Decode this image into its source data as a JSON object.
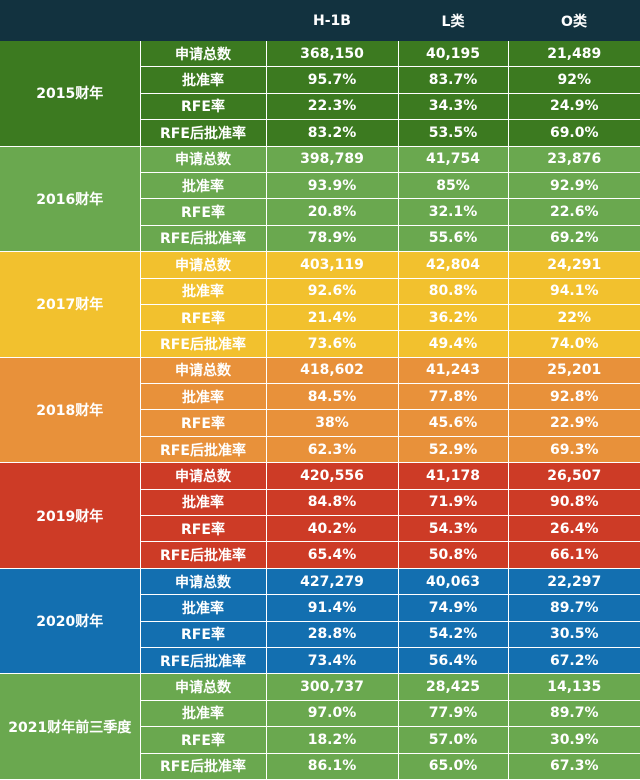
{
  "header": {
    "blank": "",
    "blank2": "",
    "h1b": "H-1B",
    "l": "L类",
    "o": "O类"
  },
  "groups": [
    {
      "year": "2015财年",
      "color": "#3c7a20",
      "rows": [
        {
          "metric": "申请总数",
          "h1b": "368,150",
          "l": "40,195",
          "o": "21,489"
        },
        {
          "metric": "批准率",
          "h1b": "95.7%",
          "l": "83.7%",
          "o": "92%"
        },
        {
          "metric": "RFE率",
          "h1b": "22.3%",
          "l": "34.3%",
          "o": "24.9%"
        },
        {
          "metric": "RFE后批准率",
          "h1b": "83.2%",
          "l": "53.5%",
          "o": "69.0%"
        }
      ]
    },
    {
      "year": "2016财年",
      "color": "#6aa84f",
      "rows": [
        {
          "metric": "申请总数",
          "h1b": "398,789",
          "l": "41,754",
          "o": "23,876"
        },
        {
          "metric": "批准率",
          "h1b": "93.9%",
          "l": "85%",
          "o": "92.9%"
        },
        {
          "metric": "RFE率",
          "h1b": "20.8%",
          "l": "32.1%",
          "o": "22.6%"
        },
        {
          "metric": "RFE后批准率",
          "h1b": "78.9%",
          "l": "55.6%",
          "o": "69.2%"
        }
      ]
    },
    {
      "year": "2017财年",
      "color": "#f2c12e",
      "rows": [
        {
          "metric": "申请总数",
          "h1b": "403,119",
          "l": "42,804",
          "o": "24,291"
        },
        {
          "metric": "批准率",
          "h1b": "92.6%",
          "l": "80.8%",
          "o": "94.1%"
        },
        {
          "metric": "RFE率",
          "h1b": "21.4%",
          "l": "36.2%",
          "o": "22%"
        },
        {
          "metric": "RFE后批准率",
          "h1b": "73.6%",
          "l": "49.4%",
          "o": "74.0%"
        }
      ]
    },
    {
      "year": "2018财年",
      "color": "#e8913a",
      "rows": [
        {
          "metric": "申请总数",
          "h1b": "418,602",
          "l": "41,243",
          "o": "25,201"
        },
        {
          "metric": "批准率",
          "h1b": "84.5%",
          "l": "77.8%",
          "o": "92.8%"
        },
        {
          "metric": "RFE率",
          "h1b": "38%",
          "l": "45.6%",
          "o": "22.9%"
        },
        {
          "metric": "RFE后批准率",
          "h1b": "62.3%",
          "l": "52.9%",
          "o": "69.3%"
        }
      ]
    },
    {
      "year": "2019财年",
      "color": "#cd3b26",
      "rows": [
        {
          "metric": "申请总数",
          "h1b": "420,556",
          "l": "41,178",
          "o": "26,507"
        },
        {
          "metric": "批准率",
          "h1b": "84.8%",
          "l": "71.9%",
          "o": "90.8%"
        },
        {
          "metric": "RFE率",
          "h1b": "40.2%",
          "l": "54.3%",
          "o": "26.4%"
        },
        {
          "metric": "RFE后批准率",
          "h1b": "65.4%",
          "l": "50.8%",
          "o": "66.1%"
        }
      ]
    },
    {
      "year": "2020财年",
      "color": "#136fb0",
      "rows": [
        {
          "metric": "申请总数",
          "h1b": "427,279",
          "l": "40,063",
          "o": "22,297"
        },
        {
          "metric": "批准率",
          "h1b": "91.4%",
          "l": "74.9%",
          "o": "89.7%"
        },
        {
          "metric": "RFE率",
          "h1b": "28.8%",
          "l": "54.2%",
          "o": "30.5%"
        },
        {
          "metric": "RFE后批准率",
          "h1b": "73.4%",
          "l": "56.4%",
          "o": "67.2%"
        }
      ]
    },
    {
      "year": "2021财年前三季度",
      "color": "#6aa84f",
      "rows": [
        {
          "metric": "申请总数",
          "h1b": "300,737",
          "l": "28,425",
          "o": "14,135"
        },
        {
          "metric": "批准率",
          "h1b": "97.0%",
          "l": "77.9%",
          "o": "89.7%"
        },
        {
          "metric": "RFE率",
          "h1b": "18.2%",
          "l": "57.0%",
          "o": "30.9%"
        },
        {
          "metric": "RFE后批准率",
          "h1b": "86.1%",
          "l": "65.0%",
          "o": "67.3%"
        }
      ]
    }
  ]
}
